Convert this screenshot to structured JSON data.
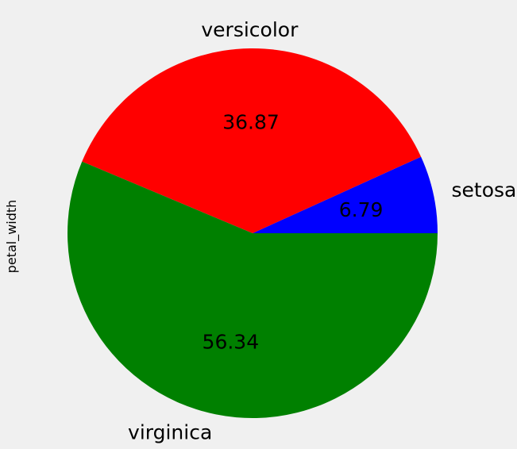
{
  "chart_data": {
    "type": "pie",
    "ylabel": "petal_width",
    "start_angle": 0,
    "direction": "counterclockwise",
    "slices": [
      {
        "label": "setosa",
        "value": 6.79,
        "pct_label": "6.79",
        "color": "#0000ff"
      },
      {
        "label": "versicolor",
        "value": 36.87,
        "pct_label": "36.87",
        "color": "#ff0000"
      },
      {
        "label": "virginica",
        "value": 56.34,
        "pct_label": "56.34",
        "color": "#008000"
      }
    ]
  }
}
